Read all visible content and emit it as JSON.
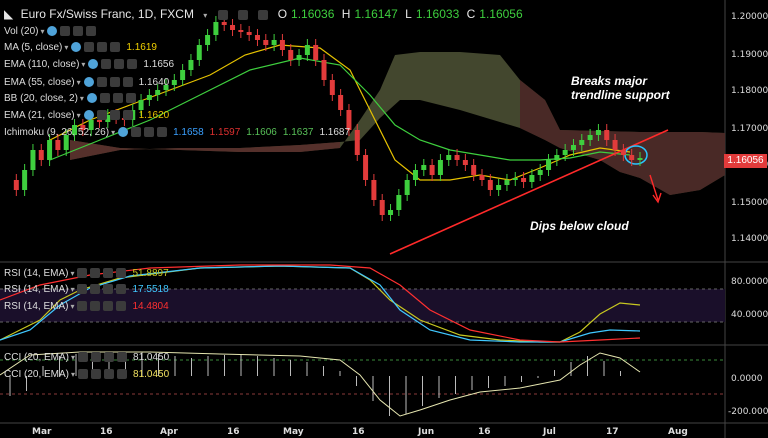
{
  "header": {
    "symbol": "Euro Fx/Swiss Franc, 1D, FXCM",
    "open_label": "O",
    "open": "1.16036",
    "high_label": "H",
    "high": "1.16147",
    "low_label": "L",
    "low": "1.16033",
    "close_label": "C",
    "close": "1.16056"
  },
  "indicators": [
    {
      "label": "Vol (20)",
      "values": []
    },
    {
      "label": "MA (5, close)",
      "values": [
        {
          "v": "1.1619",
          "color": "#f0d000"
        }
      ]
    },
    {
      "label": "EMA (110, close)",
      "values": [
        {
          "v": "1.1656",
          "color": "#dddddd"
        }
      ]
    },
    {
      "label": "EMA (55, close)",
      "values": [
        {
          "v": "1.1640",
          "color": "#dddddd"
        }
      ]
    },
    {
      "label": "BB (20, close, 2)",
      "values": []
    },
    {
      "label": "EMA (21, close)",
      "values": [
        {
          "v": "1.1620",
          "color": "#e6c200"
        }
      ]
    },
    {
      "label": "Ichimoku (9, 26, 52, 26)",
      "values": [
        {
          "v": "1.1658",
          "color": "#3aa0ff"
        },
        {
          "v": "1.1597",
          "color": "#e03030"
        },
        {
          "v": "1.1606",
          "color": "#58c058"
        },
        {
          "v": "1.1637",
          "color": "#58c058"
        },
        {
          "v": "1.1687",
          "color": "#dddddd"
        }
      ]
    }
  ],
  "price_axis": [
    "1.20000",
    "1.19000",
    "1.18000",
    "1.17000",
    "1.16000",
    "1.15000",
    "1.14000"
  ],
  "current_price_tag": "1.16056",
  "rsi_panel": {
    "legends": [
      {
        "label": "RSI (14, EMA)",
        "value": "51.8897",
        "color": "#c8c820"
      },
      {
        "label": "RSI (14, EMA)",
        "value": "17.5518",
        "color": "#40c8ff"
      },
      {
        "label": "RSI (14, EMA)",
        "value": "14.4804",
        "color": "#ff3030"
      }
    ],
    "axis": [
      "80.0000",
      "40.0000"
    ]
  },
  "cci_panel": {
    "legends": [
      {
        "label": "CCI (20, EMA)",
        "value": "81.0450",
        "color": "#dddddd"
      },
      {
        "label": "CCI (20, EMA)",
        "value": "81.0450",
        "color": "#f0e060"
      }
    ],
    "axis": [
      "0.0000",
      "-200.0000"
    ]
  },
  "time_axis": [
    "Mar",
    "16",
    "Apr",
    "16",
    "May",
    "16",
    "Jun",
    "16",
    "Jul",
    "17",
    "Aug"
  ],
  "annotations": {
    "breaks_line1": "Breaks major",
    "breaks_line2": "trendline support",
    "dips": "Dips below cloud"
  },
  "colors": {
    "bull": "#3ecf3e",
    "bear": "#e23b3b",
    "trendline": "#ff2a2a",
    "highlight_circle": "#29c6ff"
  }
}
